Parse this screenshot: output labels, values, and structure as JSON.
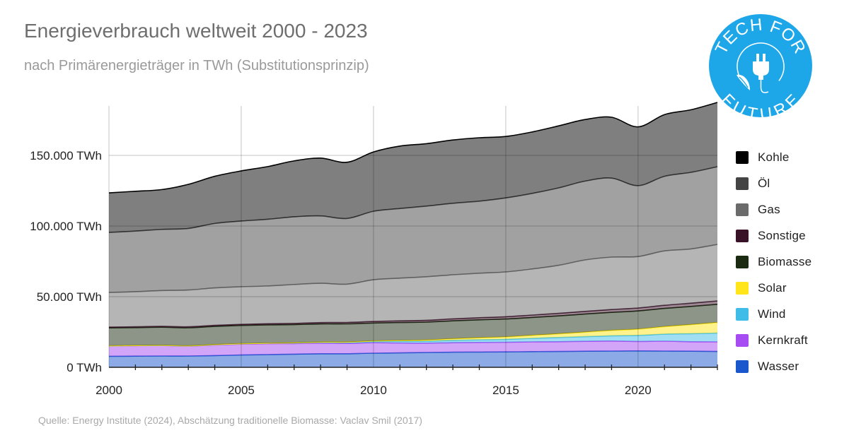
{
  "header": {
    "title": "Energieverbrauch weltweit 2000 - 2023",
    "subtitle": "nach Primärenergieträger in TWh (Substitutionsprinzip)"
  },
  "footer": {
    "source": "Quelle: Energy Institute (2024), Abschätzung traditionelle Biomasse: Vaclav Smil (2017)"
  },
  "logo": {
    "text_top": "TECH FOR",
    "text_bottom": "FUTURE",
    "icon": "plug-leaf-icon",
    "color": "#1ea7e8"
  },
  "chart_data": {
    "type": "area",
    "stacked": true,
    "title": "Energieverbrauch weltweit 2000 - 2023",
    "subtitle": "nach Primärenergieträger in TWh (Substitutionsprinzip)",
    "xlabel": "",
    "ylabel": "",
    "x": [
      2000,
      2001,
      2002,
      2003,
      2004,
      2005,
      2006,
      2007,
      2008,
      2009,
      2010,
      2011,
      2012,
      2013,
      2014,
      2015,
      2016,
      2017,
      2018,
      2019,
      2020,
      2021,
      2022,
      2023
    ],
    "xlim": [
      2000,
      2023
    ],
    "ylim": [
      0,
      185000
    ],
    "x_ticks": [
      2000,
      2005,
      2010,
      2015,
      2020
    ],
    "y_ticks": [
      0,
      50000,
      100000,
      150000
    ],
    "y_tick_labels": [
      "0 TWh",
      "50.000 TWh",
      "100.000 TWh",
      "150.000 TWh"
    ],
    "grid": true,
    "legend_position": "right",
    "series": [
      {
        "name": "Wasser",
        "color": "#1a56cc",
        "values": [
          7800,
          7900,
          8000,
          8000,
          8300,
          8700,
          9000,
          9300,
          9600,
          9600,
          10000,
          10200,
          10500,
          10700,
          10800,
          10900,
          11100,
          11200,
          11400,
          11500,
          11600,
          11500,
          11400,
          11200
        ]
      },
      {
        "name": "Kernkraft",
        "color": "#a64cf2",
        "values": [
          7300,
          7400,
          7400,
          7000,
          7500,
          7700,
          7700,
          7500,
          7500,
          7300,
          7400,
          7000,
          6600,
          6700,
          6800,
          6800,
          6900,
          6900,
          7000,
          7100,
          6700,
          7000,
          6700,
          6800
        ]
      },
      {
        "name": "Wind",
        "color": "#3fbde8",
        "values": [
          80,
          100,
          150,
          180,
          240,
          280,
          360,
          450,
          600,
          750,
          950,
          1200,
          1400,
          1700,
          1900,
          2100,
          2500,
          3000,
          3300,
          3700,
          4300,
          5000,
          5700,
          6200
        ]
      },
      {
        "name": "Solar",
        "color": "#ffe51a",
        "values": [
          10,
          10,
          20,
          20,
          30,
          40,
          50,
          70,
          120,
          200,
          300,
          600,
          800,
          1100,
          1400,
          1700,
          2100,
          2600,
          3200,
          3800,
          4400,
          5300,
          6400,
          7500
        ]
      },
      {
        "name": "Biomasse",
        "color": "#1a2b12",
        "values": [
          12700,
          12700,
          12800,
          12800,
          12900,
          12900,
          12900,
          12900,
          12900,
          12900,
          12700,
          12700,
          12700,
          12700,
          12700,
          12700,
          12700,
          12700,
          12800,
          12800,
          12900,
          12900,
          12900,
          12900
        ]
      },
      {
        "name": "Sonstige",
        "color": "#3a1228",
        "values": [
          600,
          600,
          650,
          700,
          750,
          800,
          850,
          900,
          950,
          1000,
          1100,
          1200,
          1300,
          1400,
          1500,
          1600,
          1700,
          1800,
          1900,
          2000,
          2100,
          2200,
          2300,
          2400
        ]
      },
      {
        "name": "Gas",
        "color": "#6b6b6b",
        "values": [
          24500,
          24800,
          25300,
          26000,
          26500,
          26600,
          26700,
          27500,
          27800,
          27100,
          29500,
          30200,
          30800,
          31200,
          31500,
          31700,
          32600,
          34000,
          36400,
          37100,
          36400,
          38500,
          38400,
          40000
        ]
      },
      {
        "name": "Öl",
        "color": "#444444",
        "values": [
          42500,
          42900,
          43300,
          43600,
          45600,
          46500,
          47200,
          47900,
          47700,
          46500,
          48500,
          49300,
          50000,
          50600,
          51000,
          52400,
          53500,
          54800,
          55800,
          55900,
          50200,
          52800,
          54200,
          55000
        ]
      },
      {
        "name": "Kohle",
        "color": "#000000",
        "values": [
          28000,
          28200,
          28200,
          31200,
          33400,
          35500,
          37300,
          39600,
          40900,
          39800,
          42000,
          44200,
          44200,
          44800,
          44900,
          43500,
          43500,
          43900,
          43600,
          43100,
          41600,
          43700,
          44300,
          45500
        ]
      }
    ]
  }
}
